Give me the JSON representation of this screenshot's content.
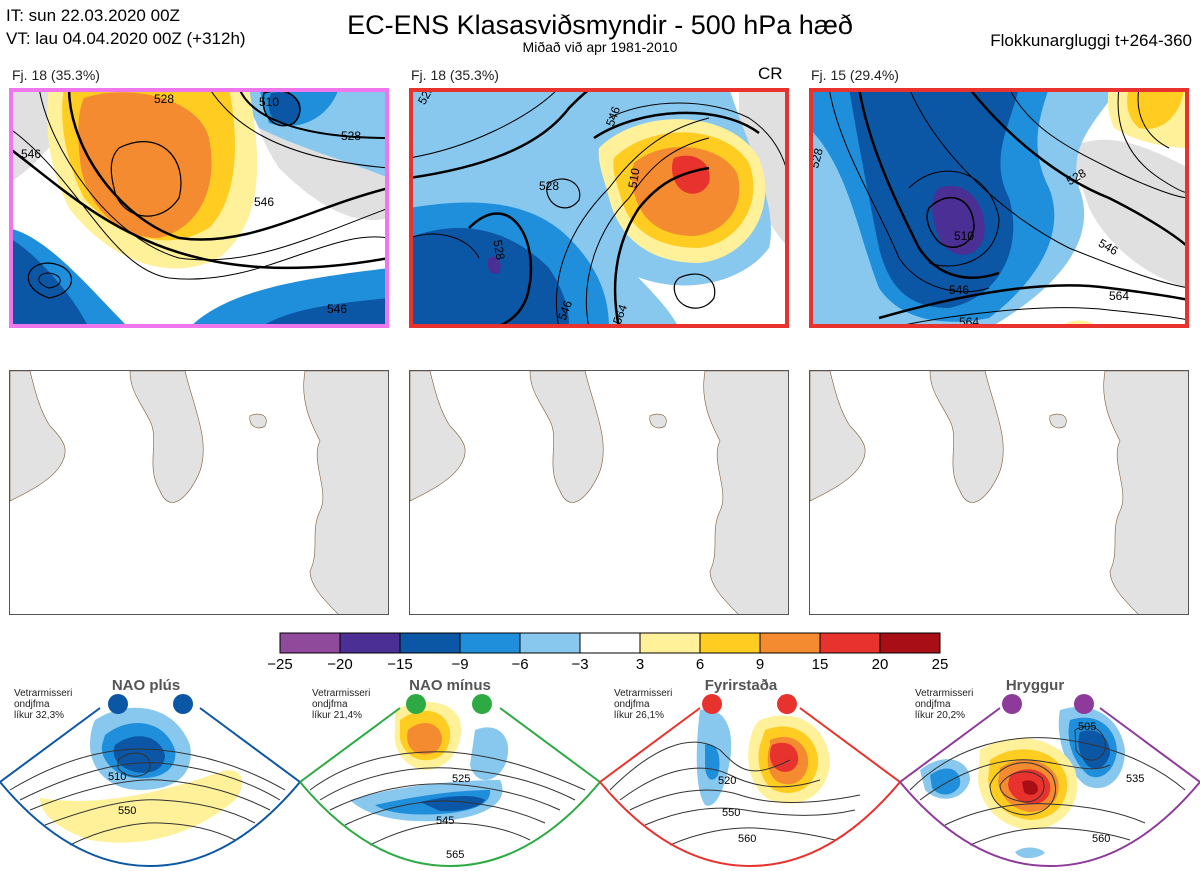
{
  "header": {
    "it_line": "IT: sun 22.03.2020 00Z",
    "vt_line": "VT: lau 04.04.2020 00Z  (+312h)",
    "title": "EC-ENS Klasasviðsmyndir - 500 hPa hæð",
    "subtitle": "Miðað við apr 1981-2010",
    "window": "Flokkunargluggi t+264-360"
  },
  "panels": [
    {
      "label": "Fj. 18 (35.3%)",
      "badge": "",
      "border_color": "#ee77ee",
      "contour_labels": [
        "546",
        "528",
        "510",
        "528",
        "546",
        "546"
      ]
    },
    {
      "label": "Fj. 18 (35.3%)",
      "badge": "CR",
      "border_color": "#e8322d",
      "contour_labels": [
        "528",
        "546",
        "528",
        "510",
        "528",
        "546",
        "564"
      ]
    },
    {
      "label": "Fj. 15 (29.4%)",
      "badge": "",
      "border_color": "#e8322d",
      "contour_labels": [
        "528",
        "510",
        "528",
        "546",
        "546",
        "564",
        "564"
      ]
    }
  ],
  "colorbar": {
    "ticks": [
      "−25",
      "−20",
      "−15",
      "−9",
      "−6",
      "−3",
      "3",
      "6",
      "9",
      "15",
      "20",
      "25"
    ],
    "colors": [
      "#8f4a9c",
      "#4b2f94",
      "#0c56a6",
      "#1f8fdb",
      "#88c8ef",
      "#ffffff",
      "#fff09a",
      "#ffcc22",
      "#f58b30",
      "#e8322d",
      "#a80e15"
    ]
  },
  "regimes": [
    {
      "name": "NAO plús",
      "stats": [
        "Vetrarmisseri",
        "ondjfma",
        "líkur 32,3%"
      ],
      "color": "#0c56a6",
      "contour_labels": [
        "510",
        "550"
      ]
    },
    {
      "name": "NAO mínus",
      "stats": [
        "Vetrarmisseri",
        "ondjfma",
        "líkur 21,4%"
      ],
      "color": "#2eaa44",
      "contour_labels": [
        "525",
        "545",
        "565"
      ]
    },
    {
      "name": "Fyrirstaða",
      "stats": [
        "Vetrarmisseri",
        "ondjfma",
        "líkur 26,1%"
      ],
      "color": "#e8322d",
      "contour_labels": [
        "520",
        "550",
        "560"
      ]
    },
    {
      "name": "Hryggur",
      "stats": [
        "Vetrarmisseri",
        "ondjfma",
        "líkur 20,2%"
      ],
      "color": "#8e3a9a",
      "contour_labels": [
        "505",
        "535",
        "560"
      ]
    }
  ]
}
